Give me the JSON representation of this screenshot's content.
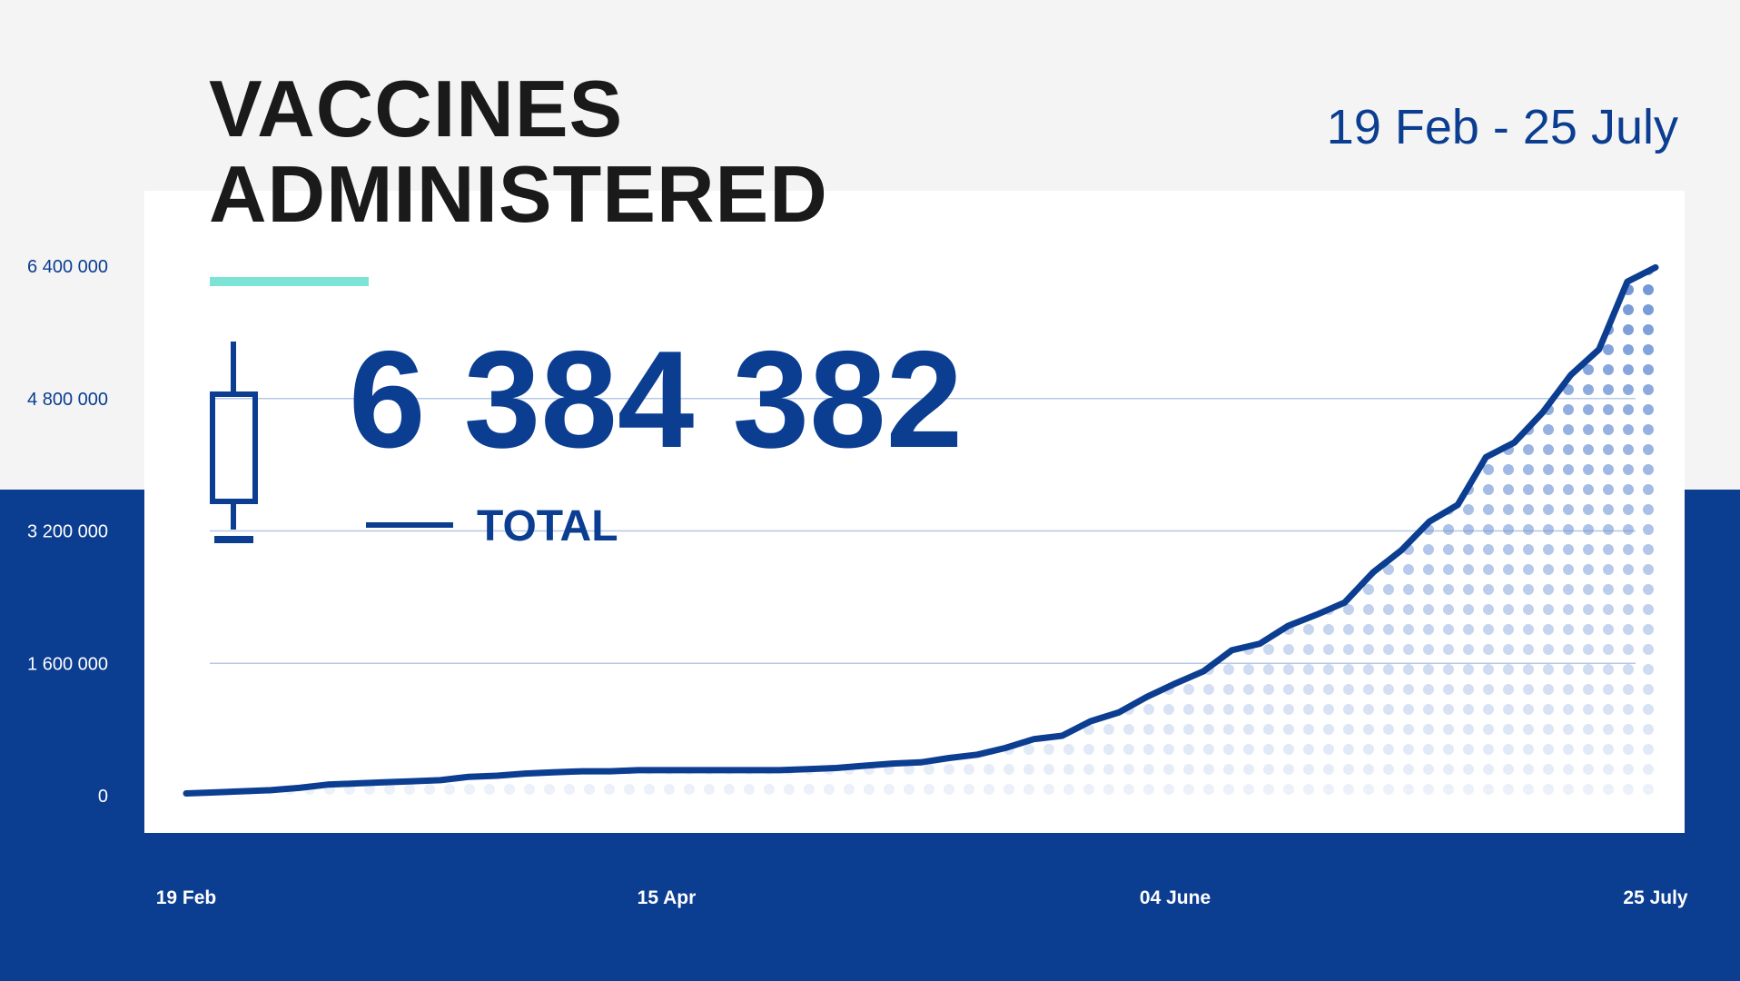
{
  "chart_data": {
    "type": "line",
    "title": "VACCINES ADMINISTERED",
    "subtitle": "19 Feb - 25 July",
    "annotation": "6 384 382",
    "categories": [
      "19 Feb",
      null,
      null,
      null,
      null,
      null,
      null,
      null,
      null,
      null,
      null,
      null,
      null,
      null,
      null,
      null,
      null,
      "15 Apr",
      null,
      null,
      null,
      null,
      null,
      null,
      null,
      null,
      null,
      null,
      null,
      null,
      null,
      null,
      null,
      null,
      null,
      "04 June",
      null,
      null,
      null,
      null,
      null,
      null,
      null,
      null,
      null,
      null,
      null,
      null,
      null,
      null,
      null,
      null,
      "25 July"
    ],
    "series": [
      {
        "name": "TOTAL",
        "color": "#0b3d91",
        "values": [
          27000,
          40000,
          54000,
          67000,
          94000,
          134000,
          148000,
          161000,
          174000,
          188000,
          228000,
          242000,
          268000,
          282000,
          295000,
          295000,
          309000,
          309000,
          309000,
          309000,
          309000,
          309000,
          322000,
          335000,
          362000,
          389000,
          403000,
          456000,
          496000,
          577000,
          684000,
          725000,
          899000,
          1006000,
          1194000,
          1355000,
          1503000,
          1758000,
          1838000,
          2053000,
          2187000,
          2335000,
          2697000,
          2965000,
          3314000,
          3515000,
          4092000,
          4267000,
          4629000,
          5085000,
          5394000,
          6212000,
          6384382
        ]
      }
    ],
    "ylim": [
      0,
      6400000
    ],
    "yticks": [
      0,
      {
        "value": 1600000,
        "label": "1 600 000"
      },
      {
        "value": 3200000,
        "label": "3 200 000"
      },
      {
        "value": 4800000,
        "label": "4 800 000"
      },
      {
        "value": 6400000,
        "label": "6 400 000"
      }
    ],
    "grid": true
  }
}
